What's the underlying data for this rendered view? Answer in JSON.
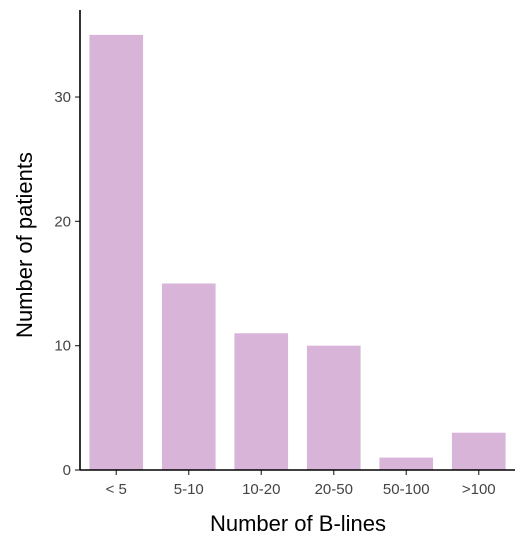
{
  "chart_data": {
    "type": "bar",
    "categories": [
      "< 5",
      "5-10",
      "10-20",
      "20-50",
      "50-100",
      ">100"
    ],
    "values": [
      35,
      15,
      11,
      10,
      1,
      3
    ],
    "xlabel": "Number of B-lines",
    "ylabel": "Number of patients",
    "ylim": [
      0,
      37
    ],
    "yticks": [
      0,
      10,
      20,
      30
    ],
    "grid": false,
    "colors": {
      "bar": "#d8b4d8"
    }
  }
}
